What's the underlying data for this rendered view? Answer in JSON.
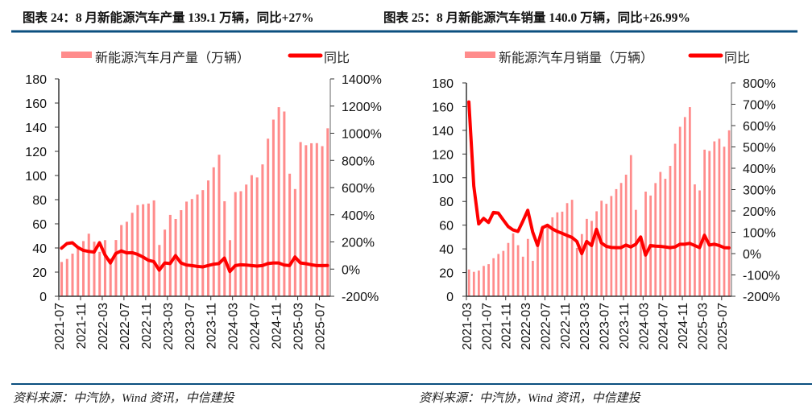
{
  "colors": {
    "bar": "#ff8c8c",
    "line": "#ff0000",
    "rule": "#0b4f7f",
    "axis": "#333333"
  },
  "chart_data": [
    {
      "type": "bar+line",
      "title": "图表 24：8 月新能源汽车产量 139.1 万辆，同比+27%",
      "legend": [
        "新能源汽车月产量（万辆）",
        "同比"
      ],
      "legend_position": "top",
      "grid": false,
      "x_tick_labels": [
        "2021-07",
        "2021-11",
        "2022-03",
        "2022-07",
        "2022-11",
        "2023-03",
        "2023-07",
        "2023-11",
        "2024-03",
        "2024-07",
        "2024-11",
        "2025-03",
        "2025-07"
      ],
      "y_left": {
        "range": [
          0,
          180
        ],
        "ticks": [
          "0",
          "20",
          "40",
          "60",
          "80",
          "100",
          "120",
          "140",
          "160",
          "180"
        ]
      },
      "y_right": {
        "range": [
          -200,
          1400
        ],
        "ticks": [
          "-200%",
          "0%",
          "200%",
          "400%",
          "600%",
          "800%",
          "1000%",
          "1200%",
          "1400%"
        ]
      },
      "x_start": "2021-07",
      "x_end": "2025-08",
      "series": [
        {
          "name": "新能源汽车月产量（万辆）",
          "axis": "left",
          "kind": "bar",
          "values": [
            28.4,
            30.9,
            35.3,
            39.7,
            45.7,
            51.8,
            45.2,
            36.8,
            46.5,
            31.2,
            46.6,
            59.0,
            61.7,
            69.1,
            75.5,
            76.2,
            76.8,
            79.4,
            42.5,
            55.2,
            67.4,
            64.0,
            71.3,
            78.4,
            80.5,
            84.3,
            87.9,
            95.9,
            106.8,
            117.2,
            78.7,
            46.5,
            86.3,
            87.0,
            92.5,
            100.3,
            98.4,
            109.2,
            130.5,
            146.3,
            156.6,
            153.0,
            101.5,
            88.8,
            127.7,
            125.1,
            126.7,
            126.8,
            124.3,
            139.1
          ]
        },
        {
          "name": "同比",
          "axis": "right",
          "kind": "line",
          "unit": "%",
          "values": [
            154,
            188,
            194,
            160,
            138,
            130,
            125,
            194,
            105,
            45,
            115,
            134,
            119,
            121,
            109,
            89,
            65,
            55,
            -8,
            45,
            41,
            99,
            45,
            30,
            26,
            20,
            16,
            26,
            36,
            41,
            81,
            -18,
            26,
            32,
            30,
            26,
            22,
            26,
            41,
            45,
            45,
            30,
            26,
            89,
            45,
            40,
            32,
            26,
            26,
            27
          ]
        }
      ]
    },
    {
      "type": "bar+line",
      "title": "图表 25：8 月新能源汽车销量 140.0 万辆，同比+26.99%",
      "legend": [
        "新能源汽车月销量（万辆）",
        "同比"
      ],
      "legend_position": "top",
      "grid": false,
      "x_tick_labels": [
        "2021-03",
        "2021-07",
        "2021-11",
        "2022-03",
        "2022-07",
        "2022-11",
        "2023-03",
        "2023-07",
        "2023-11",
        "2024-03",
        "2024-07",
        "2024-11",
        "2025-03",
        "2025-07"
      ],
      "y_left": {
        "range": [
          0,
          180
        ],
        "ticks": [
          "0",
          "20",
          "40",
          "60",
          "80",
          "100",
          "120",
          "140",
          "160",
          "180"
        ]
      },
      "y_right": {
        "range": [
          -200,
          800
        ],
        "ticks": [
          "-200%",
          "-100%",
          "0%",
          "100%",
          "200%",
          "300%",
          "400%",
          "500%",
          "600%",
          "700%",
          "800%"
        ]
      },
      "x_start": "2021-03",
      "x_end": "2025-08",
      "series": [
        {
          "name": "新能源汽车月销量（万辆）",
          "axis": "left",
          "kind": "bar",
          "values": [
            22.6,
            20.6,
            21.7,
            25.6,
            27.1,
            32.1,
            35.7,
            38.3,
            45.0,
            53.1,
            43.1,
            33.4,
            48.4,
            29.9,
            44.7,
            59.6,
            59.3,
            66.6,
            70.8,
            71.4,
            78.6,
            81.4,
            40.8,
            52.5,
            65.3,
            63.6,
            71.7,
            80.6,
            78.0,
            84.6,
            90.4,
            95.6,
            102.6,
            119.1,
            72.9,
            47.7,
            88.3,
            85.0,
            95.5,
            104.9,
            99.1,
            110.0,
            128.7,
            143.0,
            151.2,
            159.6,
            94.4,
            89.3,
            123.7,
            122.6,
            130.7,
            132.9,
            126.2,
            140.0
          ]
        },
        {
          "name": "同比",
          "axis": "right",
          "kind": "line",
          "unit": "%",
          "values": [
            711,
            317,
            139,
            165,
            146,
            193,
            190,
            158,
            127,
            111,
            104,
            152,
            203,
            101,
            38,
            121,
            133,
            116,
            104,
            95,
            85,
            76,
            57,
            0,
            57,
            38,
            114,
            50,
            34,
            29,
            28,
            28,
            40,
            31,
            44,
            78,
            -7,
            38,
            35,
            34,
            31,
            28,
            31,
            44,
            44,
            48,
            38,
            28,
            86,
            40,
            44,
            38,
            28,
            27
          ]
        }
      ]
    }
  ],
  "footer": {
    "source": [
      "资料来源：中汽协，Wind 资讯，中信建投",
      "资料来源：中汽协，Wind 资讯，中信建投"
    ]
  }
}
